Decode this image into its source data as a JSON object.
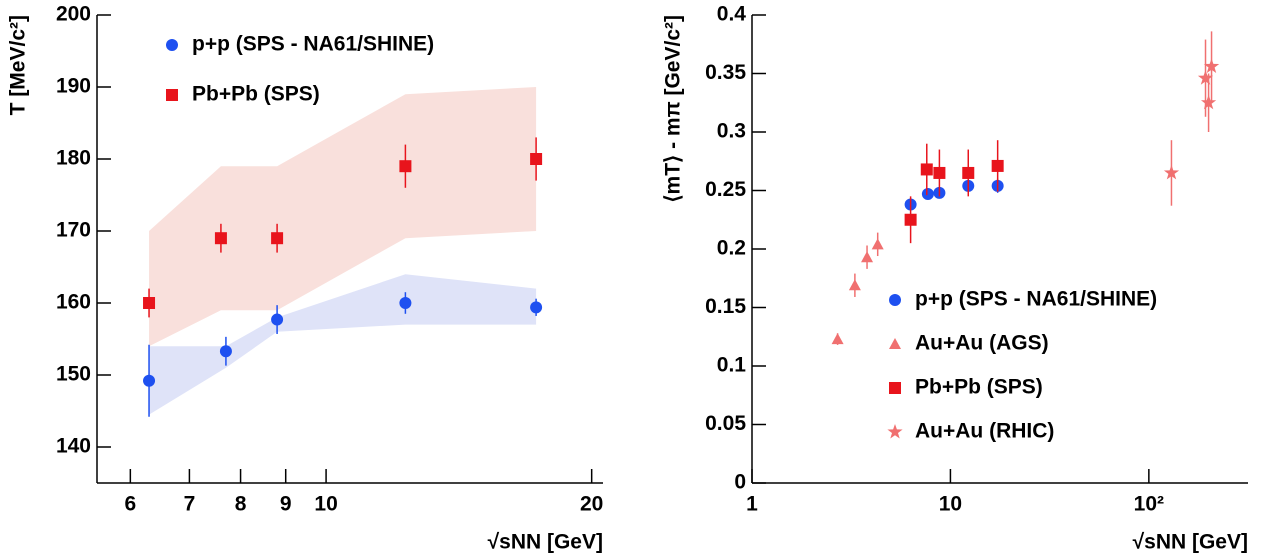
{
  "chart_data": [
    {
      "type": "scatter",
      "xlog": true,
      "xlim": [
        5.5,
        20.6
      ],
      "ylim": [
        135,
        200
      ],
      "xticks": [
        6,
        7,
        8,
        9,
        10,
        20
      ],
      "yticks": [
        140,
        150,
        160,
        170,
        180,
        190,
        200
      ],
      "xlabel": "√sNN [GeV]",
      "ylabel": "T [MeV/c²]",
      "legend": "upper left",
      "series": [
        {
          "name": "p+p (SPS - NA61/SHINE)",
          "color": "#1e50f0",
          "band_color": "#dfe3f8",
          "marker": "circle",
          "x": [
            6.3,
            7.7,
            8.8,
            12.3,
            17.3
          ],
          "values": [
            149.2,
            153.3,
            157.7,
            160,
            159.4
          ],
          "yerr": [
            5,
            2,
            2,
            1.5,
            1.2
          ],
          "band_upper": [
            154,
            154,
            158,
            164,
            162
          ],
          "band_lower": [
            144.5,
            151,
            156,
            157,
            157
          ]
        },
        {
          "name": "Pb+Pb (SPS)",
          "color": "#e8141c",
          "band_color": "#f9e0dc",
          "marker": "square",
          "x": [
            6.3,
            7.6,
            8.8,
            12.3,
            17.3
          ],
          "values": [
            160,
            169,
            169,
            179,
            180
          ],
          "yerr": [
            2,
            2,
            2,
            3,
            3
          ],
          "band_upper": [
            170,
            179,
            179,
            189,
            190
          ],
          "band_lower": [
            154,
            159,
            159,
            169,
            170
          ]
        }
      ]
    },
    {
      "type": "scatter",
      "xlog": true,
      "xlim": [
        1,
        316
      ],
      "ylim": [
        0,
        0.4
      ],
      "xticks": [
        1,
        10,
        {
          "value": 100,
          "label": "10²"
        }
      ],
      "yticks": [
        0,
        0.05,
        0.1,
        0.15,
        0.2,
        0.25,
        0.3,
        0.35,
        0.4
      ],
      "xlabel": "√sNN [GeV]",
      "ylabel": "⟨mT⟩ - mπ [GeV/c²]",
      "legend": "lower right",
      "series": [
        {
          "name": "p+p (SPS - NA61/SHINE)",
          "color": "#1e50f0",
          "marker": "circle",
          "x": [
            6.3,
            7.7,
            8.8,
            12.3,
            17.3
          ],
          "values": [
            0.238,
            0.247,
            0.248,
            0.254,
            0.254
          ],
          "yerr": [
            0.005,
            0.004,
            0.004,
            0.006,
            0.006
          ]
        },
        {
          "name": "Au+Au (AGS)",
          "color": "#f07070",
          "marker": "triangle",
          "x": [
            2.7,
            3.3,
            3.8,
            4.3
          ],
          "values": [
            0.123,
            0.169,
            0.193,
            0.204
          ],
          "yerr": [
            0.005,
            0.01,
            0.01,
            0.01
          ]
        },
        {
          "name": "Pb+Pb (SPS)",
          "color": "#e8141c",
          "marker": "square",
          "x": [
            6.3,
            7.6,
            8.8,
            12.3,
            17.3
          ],
          "values": [
            0.225,
            0.268,
            0.265,
            0.265,
            0.271
          ],
          "yerr": [
            0.02,
            0.022,
            0.02,
            0.02,
            0.022
          ]
        },
        {
          "name": "Au+Au (RHIC)",
          "color": "#f07070",
          "marker": "star",
          "x": [
            130,
            193,
            200,
            207
          ],
          "values": [
            0.265,
            0.346,
            0.325,
            0.356
          ],
          "yerr": [
            0.028,
            0.033,
            0.025,
            0.03
          ]
        }
      ]
    }
  ]
}
